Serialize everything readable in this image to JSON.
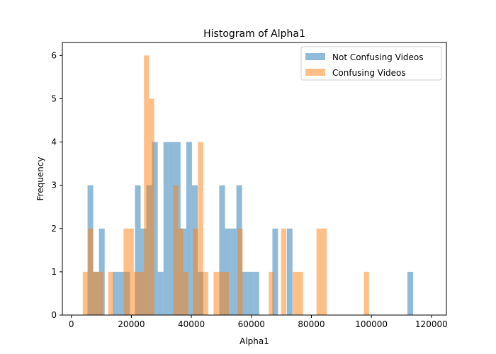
{
  "chart_data": {
    "type": "bar",
    "title": "Histogram of Alpha1",
    "xlabel": "Alpha1",
    "ylabel": "Frequency",
    "xlim": [
      -3000,
      125000
    ],
    "ylim": [
      0,
      6.3
    ],
    "xticks": [
      0,
      20000,
      40000,
      60000,
      80000,
      100000,
      120000
    ],
    "xtick_labels": [
      "0",
      "20000",
      "40000",
      "60000",
      "80000",
      "100000",
      "120000"
    ],
    "yticks": [
      0,
      1,
      2,
      3,
      4,
      5,
      6
    ],
    "ytick_labels": [
      "0",
      "1",
      "2",
      "3",
      "4",
      "5",
      "6"
    ],
    "grid": false,
    "legend_position": "top-right",
    "series": [
      {
        "name": "Not Confusing Videos",
        "color": "#1f77b4",
        "opacity": 0.5,
        "bars": [
          [
            5400,
            7300,
            3
          ],
          [
            7300,
            9200,
            1
          ],
          [
            9200,
            11100,
            2
          ],
          [
            13800,
            15700,
            1
          ],
          [
            15700,
            17600,
            1
          ],
          [
            17600,
            19500,
            1
          ],
          [
            21200,
            23100,
            3
          ],
          [
            23100,
            25000,
            2
          ],
          [
            25000,
            26900,
            3
          ],
          [
            26900,
            28800,
            4
          ],
          [
            28800,
            30700,
            1
          ],
          [
            30700,
            32600,
            4
          ],
          [
            32600,
            34500,
            4
          ],
          [
            34500,
            36400,
            4
          ],
          [
            36400,
            38300,
            2
          ],
          [
            38300,
            40200,
            4
          ],
          [
            40200,
            42100,
            3
          ],
          [
            42100,
            44000,
            1
          ],
          [
            49300,
            51200,
            3
          ],
          [
            51200,
            53100,
            2
          ],
          [
            53100,
            55000,
            2
          ],
          [
            55000,
            56900,
            3
          ],
          [
            56900,
            58800,
            1
          ],
          [
            58800,
            60700,
            1
          ],
          [
            60700,
            62600,
            1
          ],
          [
            67000,
            68900,
            2
          ],
          [
            71800,
            73700,
            2
          ],
          [
            112000,
            113900,
            1
          ]
        ]
      },
      {
        "name": "Confusing Videos",
        "color": "#ff7f0e",
        "opacity": 0.5,
        "bars": [
          [
            3800,
            5500,
            1
          ],
          [
            5500,
            7200,
            2
          ],
          [
            7200,
            8900,
            1
          ],
          [
            8900,
            10600,
            1
          ],
          [
            12300,
            14000,
            1
          ],
          [
            17400,
            19100,
            2
          ],
          [
            19100,
            20800,
            2
          ],
          [
            20800,
            22500,
            1
          ],
          [
            22500,
            24200,
            1
          ],
          [
            24200,
            25900,
            6
          ],
          [
            25900,
            27600,
            5
          ],
          [
            33900,
            35600,
            3
          ],
          [
            35600,
            37300,
            2
          ],
          [
            37300,
            39000,
            1
          ],
          [
            40500,
            42200,
            2
          ],
          [
            42200,
            43900,
            4
          ],
          [
            43900,
            45600,
            1
          ],
          [
            47400,
            49100,
            1
          ],
          [
            49100,
            50800,
            1
          ],
          [
            50800,
            52500,
            1
          ],
          [
            55400,
            57100,
            2
          ],
          [
            65800,
            67500,
            1
          ],
          [
            69900,
            71600,
            2
          ],
          [
            73800,
            75500,
            1
          ],
          [
            75500,
            77200,
            1
          ],
          [
            81700,
            83400,
            2
          ],
          [
            83400,
            85100,
            2
          ],
          [
            97500,
            99200,
            1
          ]
        ]
      }
    ]
  }
}
